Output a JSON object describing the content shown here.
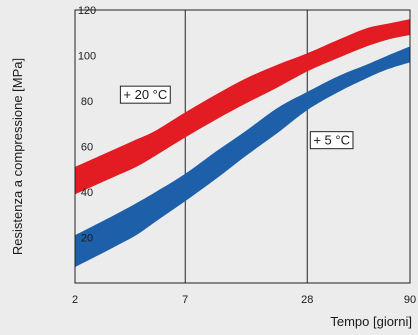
{
  "chart_data": {
    "type": "area",
    "title": "",
    "xlabel": "Tempo [giorni]",
    "ylabel": "Resistenza a compressione [MPa]",
    "x_ticks": [
      "2",
      "7",
      "28",
      "90"
    ],
    "y_ticks": [
      "20",
      "40",
      "60",
      "80",
      "100",
      "120"
    ],
    "xlim": [
      2,
      90
    ],
    "ylim": [
      0,
      120
    ],
    "grid": true,
    "series": [
      {
        "name": "+ 20 °C",
        "color": "#e31b23",
        "x": [
          2,
          3,
          4,
          5,
          7,
          10,
          14,
          20,
          28,
          40,
          55,
          70,
          90
        ],
        "upper": [
          51,
          58,
          63,
          67,
          75,
          83,
          90,
          96,
          101,
          107,
          112,
          114,
          116
        ],
        "lower": [
          39,
          46,
          51,
          56,
          64,
          72,
          79,
          86,
          93,
          99,
          104,
          107,
          109
        ]
      },
      {
        "name": "+ 5 °C",
        "color": "#1e5faa",
        "x": [
          2,
          3,
          4,
          5,
          7,
          10,
          14,
          20,
          28,
          40,
          55,
          70,
          90
        ],
        "upper": [
          21,
          29,
          35,
          40,
          48,
          58,
          67,
          77,
          84,
          91,
          96,
          100,
          104
        ],
        "lower": [
          7,
          15,
          21,
          27,
          36,
          46,
          56,
          66,
          76,
          84,
          90,
          94,
          97
        ]
      }
    ],
    "annotations": [
      {
        "text": "+ 20 °C",
        "x": 3.35,
        "y": 83
      },
      {
        "text": "+ 5 °C",
        "x": 29.0,
        "y": 63
      }
    ]
  }
}
